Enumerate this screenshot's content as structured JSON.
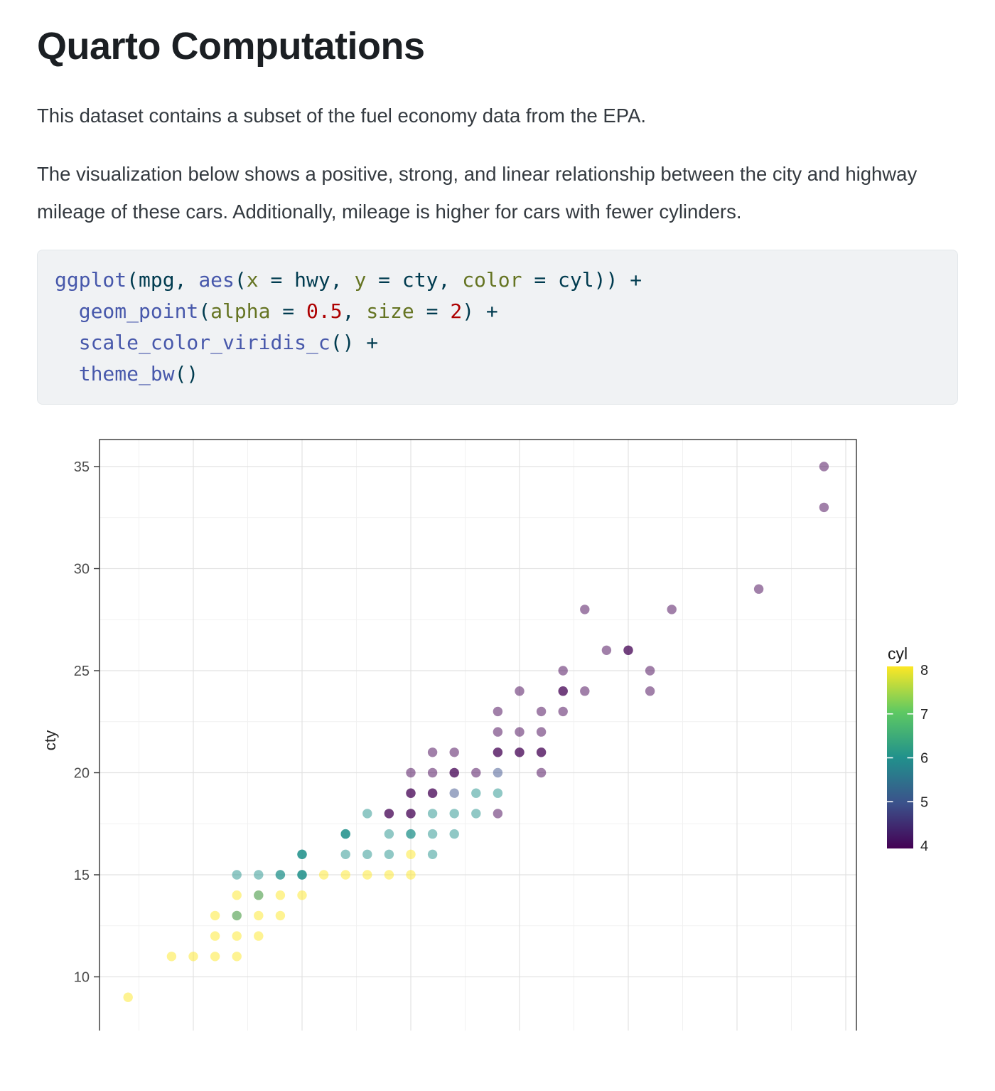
{
  "page": {
    "title": "Quarto Computations",
    "para1": "This dataset contains a subset of the fuel economy data from the EPA.",
    "para2": "The visualization below shows a positive, strong, and linear relationship between the city and highway mileage of these cars. Additionally, mileage is higher for cars with fewer cylinders."
  },
  "code": {
    "language": "r",
    "background": "#f0f2f4",
    "syntax_colors": {
      "function": "#4758AB",
      "argument": "#657422",
      "number": "#AD0000",
      "text": "#003B4F"
    },
    "lines": [
      {
        "tokens": [
          {
            "t": "ggplot",
            "c": "fn"
          },
          {
            "t": "(mpg, ",
            "c": "p"
          },
          {
            "t": "aes",
            "c": "fn"
          },
          {
            "t": "(",
            "c": "p"
          },
          {
            "t": "x",
            "c": "arg"
          },
          {
            "t": " = hwy, ",
            "c": "p"
          },
          {
            "t": "y",
            "c": "arg"
          },
          {
            "t": " = cty, ",
            "c": "p"
          },
          {
            "t": "color",
            "c": "arg"
          },
          {
            "t": " = cyl)) +",
            "c": "p"
          }
        ]
      },
      {
        "tokens": [
          {
            "t": "  ",
            "c": "p"
          },
          {
            "t": "geom_point",
            "c": "fn"
          },
          {
            "t": "(",
            "c": "p"
          },
          {
            "t": "alpha",
            "c": "arg"
          },
          {
            "t": " = ",
            "c": "p"
          },
          {
            "t": "0.5",
            "c": "num"
          },
          {
            "t": ", ",
            "c": "p"
          },
          {
            "t": "size",
            "c": "arg"
          },
          {
            "t": " = ",
            "c": "p"
          },
          {
            "t": "2",
            "c": "num"
          },
          {
            "t": ") +",
            "c": "p"
          }
        ]
      },
      {
        "tokens": [
          {
            "t": "  ",
            "c": "p"
          },
          {
            "t": "scale_color_viridis_c",
            "c": "fn"
          },
          {
            "t": "() +",
            "c": "p"
          }
        ]
      },
      {
        "tokens": [
          {
            "t": "  ",
            "c": "p"
          },
          {
            "t": "theme_bw",
            "c": "fn"
          },
          {
            "t": "()",
            "c": "p"
          }
        ]
      }
    ]
  },
  "chart_data": {
    "type": "scatter",
    "title": "",
    "y_axis": {
      "label": "cty",
      "tick_labels": [
        35,
        30,
        25,
        20,
        15,
        10
      ]
    },
    "x_axis": {
      "tick_labels_visible": false,
      "gridline_values": [
        15,
        20,
        25,
        30,
        35,
        40,
        45
      ]
    },
    "legend": {
      "title": "cyl",
      "tick_labels": [
        8,
        7,
        6,
        5,
        4
      ],
      "colors": {
        "4": "#440154",
        "5": "#3b528b",
        "6": "#21918c",
        "7": "#5ec962",
        "8": "#fde725"
      }
    },
    "point_alpha": 0.5,
    "points_format": [
      "hwy",
      "cty",
      "cyl"
    ],
    "points": [
      [
        44,
        35,
        4
      ],
      [
        44,
        33,
        4
      ],
      [
        41,
        29,
        4
      ],
      [
        37,
        28,
        4
      ],
      [
        33,
        28,
        4
      ],
      [
        35,
        26,
        4
      ],
      [
        35,
        26,
        4
      ],
      [
        34,
        26,
        4
      ],
      [
        36,
        25,
        4
      ],
      [
        32,
        25,
        4
      ],
      [
        36,
        24,
        4
      ],
      [
        33,
        24,
        4
      ],
      [
        32,
        24,
        4
      ],
      [
        32,
        24,
        4
      ],
      [
        30,
        24,
        4
      ],
      [
        32,
        23,
        4
      ],
      [
        31,
        23,
        4
      ],
      [
        29,
        23,
        4
      ],
      [
        31,
        22,
        4
      ],
      [
        30,
        22,
        4
      ],
      [
        29,
        22,
        4
      ],
      [
        31,
        21,
        4
      ],
      [
        31,
        21,
        4
      ],
      [
        30,
        21,
        4
      ],
      [
        30,
        21,
        4
      ],
      [
        29,
        21,
        4
      ],
      [
        29,
        21,
        4
      ],
      [
        27,
        21,
        4
      ],
      [
        26,
        21,
        4
      ],
      [
        31,
        20,
        4
      ],
      [
        29,
        20,
        5
      ],
      [
        28,
        20,
        4
      ],
      [
        27,
        20,
        4
      ],
      [
        27,
        20,
        4
      ],
      [
        26,
        20,
        4
      ],
      [
        25,
        20,
        4
      ],
      [
        29,
        19,
        6
      ],
      [
        28,
        19,
        6
      ],
      [
        27,
        19,
        5
      ],
      [
        26,
        19,
        4
      ],
      [
        26,
        19,
        4
      ],
      [
        25,
        19,
        4
      ],
      [
        25,
        19,
        4
      ],
      [
        29,
        18,
        4
      ],
      [
        28,
        18,
        6
      ],
      [
        27,
        18,
        6
      ],
      [
        26,
        18,
        6
      ],
      [
        25,
        18,
        4
      ],
      [
        25,
        18,
        4
      ],
      [
        24,
        18,
        4
      ],
      [
        24,
        18,
        4
      ],
      [
        23,
        18,
        6
      ],
      [
        27,
        17,
        6
      ],
      [
        26,
        17,
        6
      ],
      [
        25,
        17,
        6
      ],
      [
        25,
        17,
        6
      ],
      [
        24,
        17,
        6
      ],
      [
        22,
        17,
        6
      ],
      [
        22,
        17,
        6
      ],
      [
        22,
        17,
        6
      ],
      [
        26,
        16,
        6
      ],
      [
        25,
        16,
        8
      ],
      [
        24,
        16,
        6
      ],
      [
        23,
        16,
        6
      ],
      [
        22,
        16,
        6
      ],
      [
        20,
        16,
        6
      ],
      [
        20,
        16,
        6
      ],
      [
        20,
        16,
        6
      ],
      [
        25,
        15,
        8
      ],
      [
        24,
        15,
        8
      ],
      [
        23,
        15,
        8
      ],
      [
        22,
        15,
        8
      ],
      [
        21,
        15,
        8
      ],
      [
        20,
        15,
        6
      ],
      [
        20,
        15,
        6
      ],
      [
        20,
        15,
        6
      ],
      [
        19,
        15,
        6
      ],
      [
        19,
        15,
        6
      ],
      [
        18,
        15,
        6
      ],
      [
        17,
        15,
        6
      ],
      [
        20,
        14,
        8
      ],
      [
        19,
        14,
        8
      ],
      [
        18,
        14,
        8
      ],
      [
        18,
        14,
        6
      ],
      [
        17,
        14,
        8
      ],
      [
        19,
        13,
        8
      ],
      [
        18,
        13,
        8
      ],
      [
        17,
        13,
        8
      ],
      [
        17,
        13,
        6
      ],
      [
        16,
        13,
        8
      ],
      [
        18,
        12,
        8
      ],
      [
        17,
        12,
        8
      ],
      [
        16,
        12,
        8
      ],
      [
        17,
        11,
        8
      ],
      [
        16,
        11,
        8
      ],
      [
        15,
        11,
        8
      ],
      [
        14,
        11,
        8
      ],
      [
        12,
        9,
        8
      ]
    ]
  }
}
